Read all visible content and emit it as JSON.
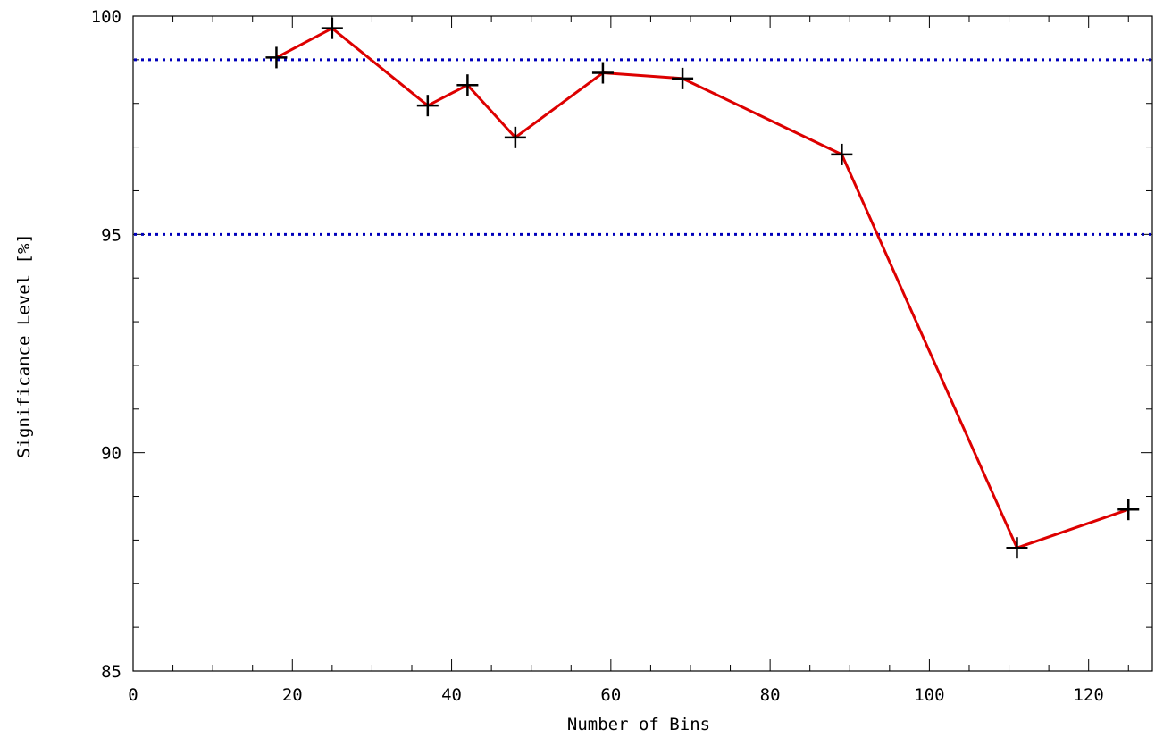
{
  "chart_data": {
    "type": "line",
    "title": "",
    "xlabel": "Number of Bins",
    "ylabel": "Significance Level [%]",
    "xlim": [
      0,
      128
    ],
    "ylim": [
      85,
      100
    ],
    "x_ticks": [
      0,
      20,
      40,
      60,
      80,
      100,
      120
    ],
    "y_ticks": [
      85,
      90,
      95,
      100
    ],
    "x_minor_step": 5,
    "y_minor_step": 1,
    "grid": false,
    "series": [
      {
        "x": [
          18,
          25,
          37,
          42,
          48,
          59,
          69,
          89,
          111,
          125
        ],
        "y": [
          99.05,
          99.72,
          97.95,
          98.42,
          97.22,
          98.7,
          98.57,
          96.83,
          87.82,
          88.7
        ],
        "color": "#dd0000",
        "marker": "+",
        "marker_color": "#000000"
      }
    ],
    "reference_lines": [
      {
        "y": 99,
        "color": "#0000bb",
        "style": "dotted"
      },
      {
        "y": 95,
        "color": "#0000bb",
        "style": "dotted"
      }
    ]
  }
}
